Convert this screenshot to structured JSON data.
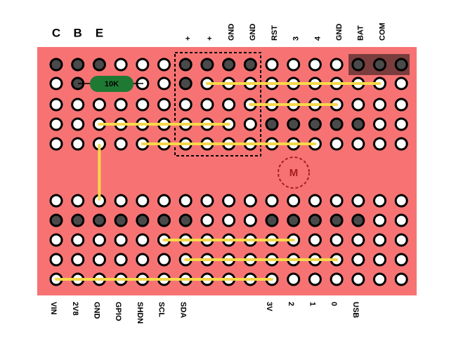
{
  "board": {
    "top_left_labels": [
      "C",
      "B",
      "E"
    ],
    "top_labels": [
      "+",
      "+",
      "GND",
      "GND",
      "RST",
      "3",
      "4",
      "GND",
      "BAT",
      "COM"
    ],
    "bottom_labels": [
      "VIN",
      "2V8",
      "GND",
      "GPIO",
      "SHDN",
      "SCL",
      "SDA",
      "3V",
      "2",
      "1",
      "0",
      "USB"
    ],
    "resistor": "10K",
    "motor": "M"
  }
}
